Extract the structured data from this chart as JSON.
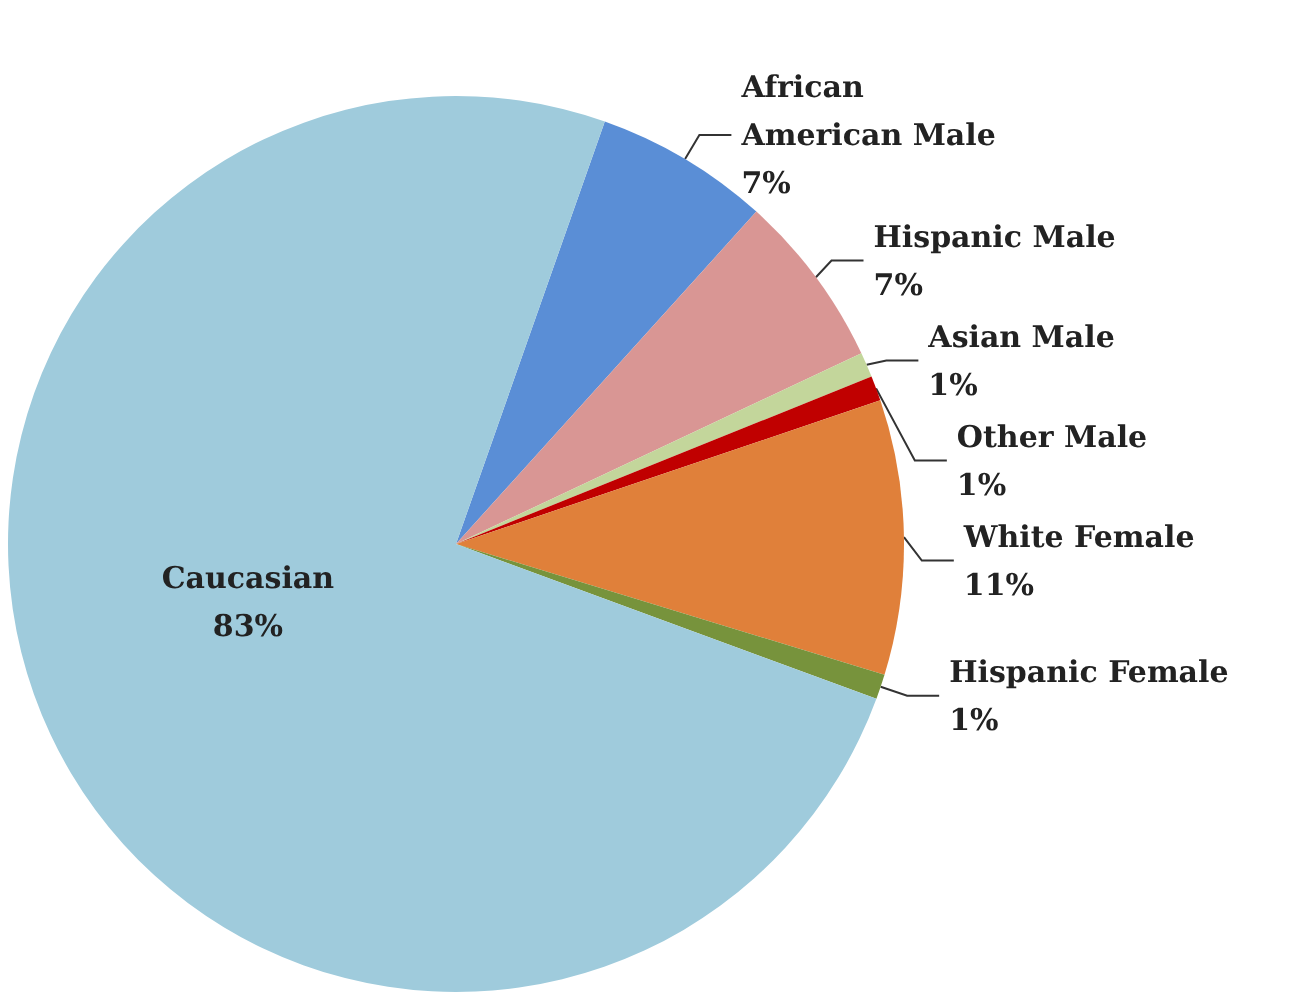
{
  "chart_data": {
    "type": "pie",
    "categories": [
      "African\nAmerican Male",
      "Hispanic Male",
      "Asian Male",
      "Other Male",
      "White Female",
      "Hispanic Female",
      "Caucasian"
    ],
    "values": [
      7,
      7,
      1,
      1,
      11,
      1,
      83
    ],
    "value_labels": [
      "7%",
      "7%",
      "1%",
      "1%",
      "11%",
      "1%",
      "83%"
    ],
    "colors": [
      "#5a8ed6",
      "#d99694",
      "#c3d69b",
      "#c00000",
      "#e0803a",
      "#77933c",
      "#9fcbdc"
    ],
    "legend": false
  }
}
